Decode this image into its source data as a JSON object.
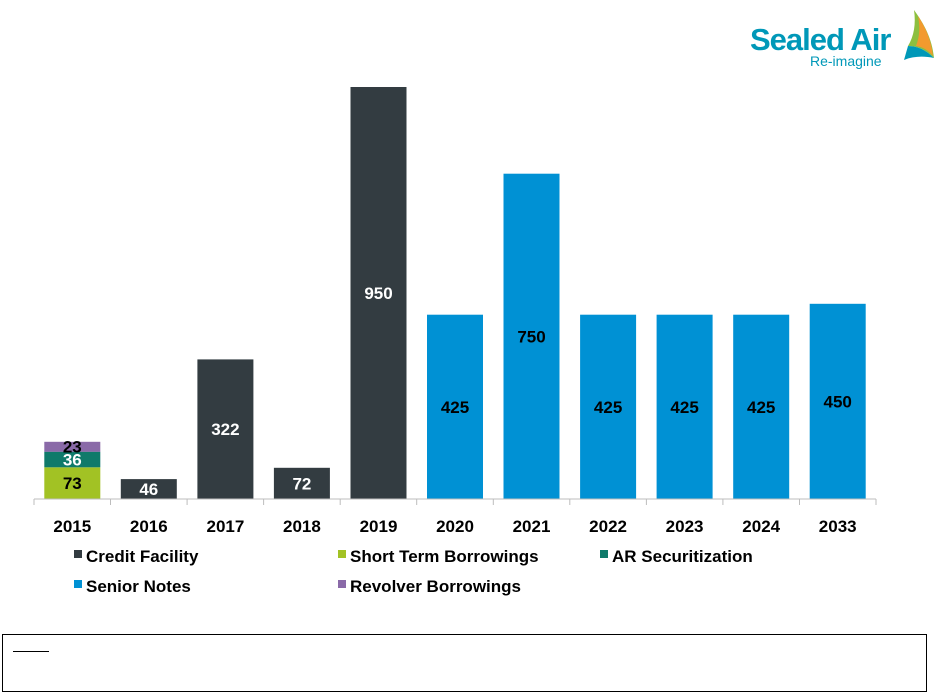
{
  "logo": {
    "brand": "Sealed Air",
    "tagline": "Re-imagine"
  },
  "colors": {
    "credit_facility": "#333c41",
    "short_term_borrowings": "#a2c224",
    "ar_securitization": "#0f7a6a",
    "senior_notes": "#0091d4",
    "revolver_borrowings": "#8a6aa8",
    "brand_teal": "#0098b8",
    "brand_green": "#8dbf3f",
    "brand_orange": "#f29a2e"
  },
  "chart_data": {
    "type": "bar",
    "stacked": true,
    "categories": [
      "2015",
      "2016",
      "2017",
      "2018",
      "2019",
      "2020",
      "2021",
      "2022",
      "2023",
      "2024",
      "2033"
    ],
    "ylim": [
      0,
      1000
    ],
    "grid": false,
    "legend_position": "bottom",
    "series": [
      {
        "name": "Credit Facility",
        "color_key": "credit_facility",
        "values": [
          0,
          46,
          322,
          72,
          950,
          0,
          0,
          0,
          0,
          0,
          0
        ]
      },
      {
        "name": "Short Term Borrowings",
        "color_key": "short_term_borrowings",
        "values": [
          73,
          0,
          0,
          0,
          0,
          0,
          0,
          0,
          0,
          0,
          0
        ]
      },
      {
        "name": "AR Securitization",
        "color_key": "ar_securitization",
        "values": [
          36,
          0,
          0,
          0,
          0,
          0,
          0,
          0,
          0,
          0,
          0
        ]
      },
      {
        "name": "Senior Notes",
        "color_key": "senior_notes",
        "values": [
          0,
          0,
          0,
          0,
          0,
          425,
          750,
          425,
          425,
          425,
          450
        ]
      },
      {
        "name": "Revolver Borrowings",
        "color_key": "revolver_borrowings",
        "values": [
          23,
          0,
          0,
          0,
          0,
          0,
          0,
          0,
          0,
          0,
          0
        ]
      }
    ],
    "stack_order": [
      1,
      2,
      4,
      0,
      3
    ],
    "label_colors": {
      "credit_facility": "#ffffff",
      "short_term_borrowings": "#000000",
      "ar_securitization": "#ffffff",
      "senior_notes": "#000000",
      "revolver_borrowings": "#000000"
    }
  }
}
